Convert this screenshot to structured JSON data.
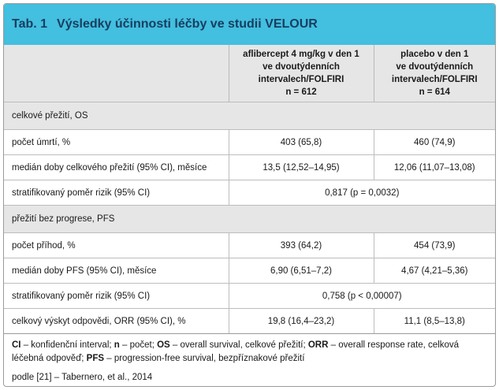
{
  "table": {
    "label": "Tab. 1",
    "title": "Výsledky účinnosti léčby ve studii VELOUR",
    "header": {
      "col_a": [
        "aflibercept 4 mg/kg v den 1",
        "ve dvoutýdenních",
        "intervalech/FOLFIRI",
        "n = 612"
      ],
      "col_b": [
        "placebo v den 1",
        "ve dvoutýdenních",
        "intervalech/FOLFIRI",
        "n = 614"
      ]
    },
    "sections": [
      {
        "title": "celkové přežití, OS",
        "rows": [
          {
            "label": "počet úmrtí, %",
            "a": "403 (65,8)",
            "b": "460 (74,9)"
          },
          {
            "label": "medián doby celkového přežití (95% CI), měsíce",
            "a": "13,5 (12,52–14,95)",
            "b": "12,06 (11,07–13,08)"
          },
          {
            "label": "stratifikovaný poměr rizik (95% CI)",
            "span": "0,817 (p = 0,0032)"
          }
        ]
      },
      {
        "title": "přežití bez progrese, PFS",
        "rows": [
          {
            "label": "počet příhod, %",
            "a": "393 (64,2)",
            "b": "454 (73,9)"
          },
          {
            "label": "medián doby PFS (95% CI), měsíce",
            "a": "6,90 (6,51–7,2)",
            "b": "4,67 (4,21–5,36)"
          },
          {
            "label": "stratifikovaný poměr rizik (95% CI)",
            "span": "0,758 (p < 0,00007)"
          },
          {
            "label": "celkový výskyt odpovědi, ORR (95% CI), %",
            "a": "19,8 (16,4–23,2)",
            "b": "11,1 (8,5–13,8)"
          }
        ]
      }
    ],
    "footnotes": {
      "ci_abbr": "CI",
      "ci_text": " – konfidenční interval; ",
      "n_abbr": "n",
      "n_text": " – počet; ",
      "os_abbr": "OS",
      "os_text": " – overall survival, celkové přežití; ",
      "orr_abbr": "ORR",
      "orr_text": " – overall response rate, celková léčebná odpověď; ",
      "pfs_abbr": "PFS",
      "pfs_text": " – progression-free survival, bezpříznakové přežití"
    },
    "source": "podle [21] – Tabernero, et al., 2014"
  }
}
